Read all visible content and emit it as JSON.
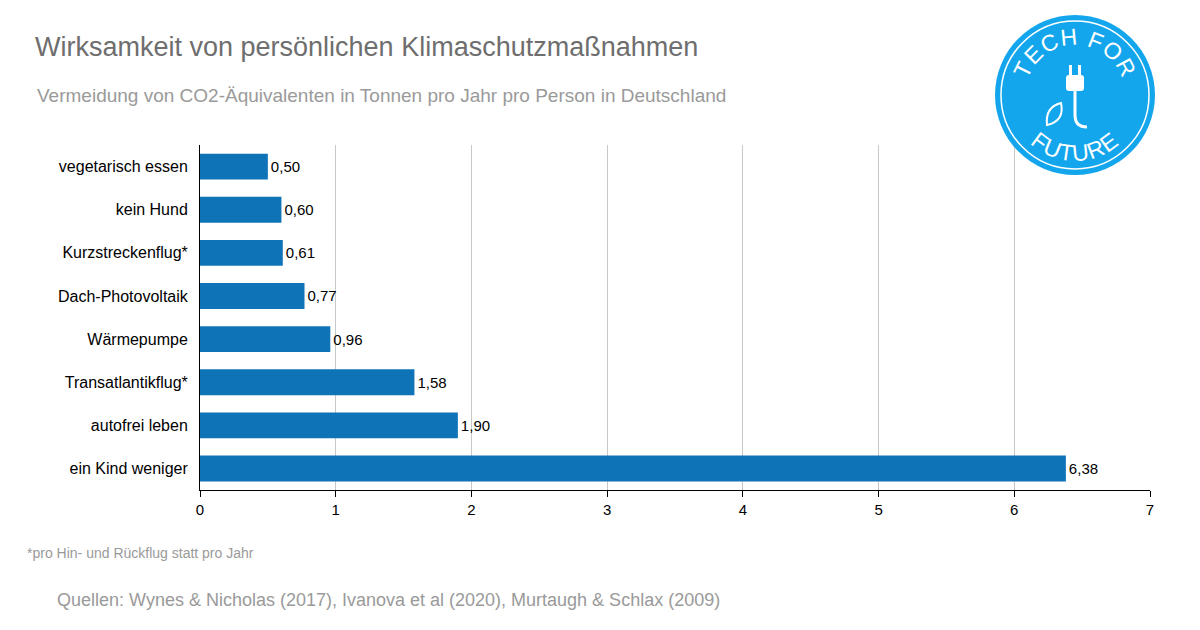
{
  "chart_data": {
    "type": "bar",
    "orientation": "horizontal",
    "title": "Wirksamkeit von persönlichen Klimaschutzmaßnahmen",
    "subtitle": "Vermeidung von CO2-Äquivalenten in Tonnen pro Jahr pro Person in Deutschland",
    "categories": [
      "vegetarisch essen",
      "kein Hund",
      "Kurzstreckenflug*",
      "Dach-Photovoltaik",
      "Wärmepumpe",
      "Transatlantikflug*",
      "autofrei leben",
      "ein Kind weniger"
    ],
    "values": [
      0.5,
      0.6,
      0.61,
      0.77,
      0.96,
      1.58,
      1.9,
      6.38
    ],
    "value_labels": [
      "0,50",
      "0,60",
      "0,61",
      "0,77",
      "0,96",
      "1,58",
      "1,90",
      "6,38"
    ],
    "data_labels": true,
    "color": "#0f73b8",
    "xlim": [
      0,
      7
    ],
    "xticks": [
      0,
      1,
      2,
      3,
      4,
      5,
      6,
      7
    ],
    "grid": true,
    "notes": [
      "*pro Hin- und Rückflug statt pro Jahr",
      "Quellen: Wynes & Nicholas (2017), Ivanova et al (2020), Murtaugh & Schlax (2009)"
    ],
    "logo": [
      "TECH FOR",
      "FUTURE"
    ]
  }
}
